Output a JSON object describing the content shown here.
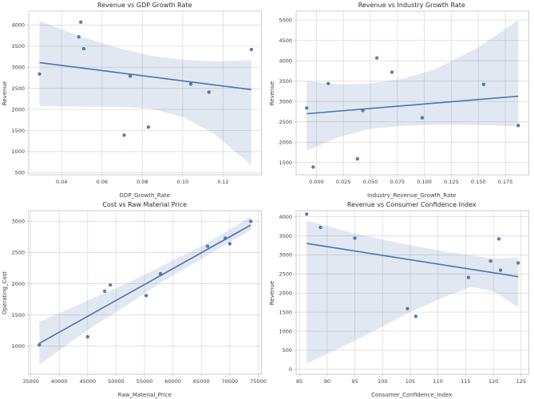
{
  "style": {
    "accent": "#4c72b0",
    "point_edge": "#3d5c90",
    "band_opacity": 0.16,
    "grid": "#dcdcdc",
    "spine": "#cccccc",
    "plot_bg": "#ffffff",
    "figure_bg": "#ffffff",
    "title_color": "#2b2b2b",
    "tick_text": "#3c3c3c"
  },
  "chart_data": [
    {
      "type": "scatter",
      "title": "Revenue vs GDP Growth Rate",
      "xlabel": "GDP_Growth_Rate",
      "ylabel": "Revenue",
      "xlim": [
        0.0237,
        0.139
      ],
      "ylim": [
        450,
        4330
      ],
      "xticks": {
        "values": [
          0.04,
          0.06,
          0.08,
          0.1,
          0.12
        ],
        "labels": [
          "0.04",
          "0.06",
          "0.08",
          "0.10",
          "0.12"
        ]
      },
      "yticks": {
        "values": [
          500,
          1000,
          1500,
          2000,
          2500,
          3000,
          3500,
          4000
        ],
        "labels": [
          "500",
          "1000",
          "1500",
          "2000",
          "2500",
          "3000",
          "3500",
          "4000"
        ]
      },
      "points": [
        [
          0.029,
          2840
        ],
        [
          0.0485,
          3720
        ],
        [
          0.0495,
          4070
        ],
        [
          0.051,
          3440
        ],
        [
          0.071,
          1390
        ],
        [
          0.074,
          2790
        ],
        [
          0.083,
          1580
        ],
        [
          0.104,
          2600
        ],
        [
          0.113,
          2410
        ],
        [
          0.134,
          3420
        ]
      ],
      "regression": [
        [
          0.029,
          3110
        ],
        [
          0.134,
          2470
        ]
      ],
      "band": {
        "x": [
          0.029,
          0.05,
          0.07,
          0.085,
          0.1,
          0.115,
          0.134
        ],
        "upper": [
          4100,
          3720,
          3430,
          3270,
          3180,
          3140,
          3165
        ],
        "lower": [
          2080,
          2065,
          2060,
          2010,
          1820,
          1440,
          680
        ]
      },
      "grid": true,
      "legend": false
    },
    {
      "type": "scatter",
      "title": "Revenue vs Industry Growth Rate",
      "xlabel": "Industry_Revenue_Growth_Rate",
      "ylabel": "Revenue",
      "xlim": [
        -0.0188,
        0.1968
      ],
      "ylim": [
        1200,
        5220
      ],
      "xticks": {
        "values": [
          0.0,
          0.025,
          0.05,
          0.075,
          0.1,
          0.125,
          0.15,
          0.175
        ],
        "labels": [
          "0.000",
          "0.025",
          "0.050",
          "0.075",
          "0.100",
          "0.125",
          "0.150",
          "0.175"
        ]
      },
      "yticks": {
        "values": [
          1500,
          2000,
          2500,
          3000,
          3500,
          4000,
          4500,
          5000
        ],
        "labels": [
          "1500",
          "2000",
          "2500",
          "3000",
          "3500",
          "4000",
          "4500",
          "5000"
        ]
      },
      "points": [
        [
          -0.009,
          2840
        ],
        [
          -0.003,
          1390
        ],
        [
          0.011,
          3440
        ],
        [
          0.038,
          1590
        ],
        [
          0.043,
          2780
        ],
        [
          0.056,
          4070
        ],
        [
          0.07,
          3720
        ],
        [
          0.098,
          2600
        ],
        [
          0.155,
          3420
        ],
        [
          0.187,
          2410
        ]
      ],
      "regression": [
        [
          -0.009,
          2700
        ],
        [
          0.187,
          3130
        ]
      ],
      "band": {
        "x": [
          -0.009,
          0.02,
          0.05,
          0.08,
          0.11,
          0.15,
          0.187
        ],
        "upper": [
          3500,
          3420,
          3440,
          3560,
          3790,
          4330,
          5000
        ],
        "lower": [
          1790,
          2120,
          2330,
          2400,
          2430,
          2420,
          2390
        ]
      },
      "grid": true,
      "legend": false
    },
    {
      "type": "scatter",
      "title": "Cost vs Raw Material Price",
      "xlabel": "Raw_Material_Price",
      "ylabel": "Operating_Cost",
      "xlim": [
        34640,
        75560
      ],
      "ylim": [
        550,
        3170
      ],
      "xticks": {
        "values": [
          35000,
          40000,
          45000,
          50000,
          55000,
          60000,
          65000,
          70000,
          75000
        ],
        "labels": [
          "35000",
          "40000",
          "45000",
          "50000",
          "55000",
          "60000",
          "65000",
          "70000",
          "75000"
        ]
      },
      "yticks": {
        "values": [
          1000,
          1500,
          2000,
          2500,
          3000
        ],
        "labels": [
          "1000",
          "1500",
          "2000",
          "2500",
          "3000"
        ]
      },
      "points": [
        [
          36500,
          1020
        ],
        [
          45000,
          1150
        ],
        [
          48000,
          1880
        ],
        [
          49000,
          1980
        ],
        [
          55300,
          1810
        ],
        [
          57800,
          2160
        ],
        [
          66100,
          2600
        ],
        [
          69200,
          2730
        ],
        [
          70000,
          2640
        ],
        [
          73700,
          3000
        ]
      ],
      "regression": [
        [
          36500,
          1045
        ],
        [
          73700,
          2940
        ]
      ],
      "band": {
        "x": [
          36500,
          45000,
          52000,
          58000,
          66000,
          73700
        ],
        "upper": [
          1390,
          1730,
          2010,
          2280,
          2650,
          3075
        ],
        "lower": [
          700,
          1260,
          1660,
          2030,
          2450,
          2860
        ]
      },
      "grid": true,
      "legend": false
    },
    {
      "type": "scatter",
      "title": "Revenue vs Consumer Confidence Index",
      "xlabel": "Consumer_Confidence_Index",
      "ylabel": "Revenue",
      "xlim": [
        84.4,
        126.4
      ],
      "ylim": [
        -130,
        4160
      ],
      "xticks": {
        "values": [
          85,
          90,
          95,
          100,
          105,
          110,
          115,
          120,
          125
        ],
        "labels": [
          "85",
          "90",
          "95",
          "100",
          "105",
          "110",
          "115",
          "120",
          "125"
        ]
      },
      "yticks": {
        "values": [
          0,
          500,
          1000,
          1500,
          2000,
          2500,
          3000,
          3500,
          4000
        ],
        "labels": [
          "0",
          "500",
          "1000",
          "1500",
          "2000",
          "2500",
          "3000",
          "3500",
          "4000"
        ]
      },
      "points": [
        [
          86.3,
          4070
        ],
        [
          88.8,
          3720
        ],
        [
          95,
          3440
        ],
        [
          104.5,
          1590
        ],
        [
          106,
          1390
        ],
        [
          115.5,
          2410
        ],
        [
          119.5,
          2840
        ],
        [
          121,
          3420
        ],
        [
          121.3,
          2600
        ],
        [
          124.5,
          2790
        ]
      ],
      "regression": [
        [
          86.3,
          3300
        ],
        [
          124.5,
          2430
        ]
      ],
      "band": {
        "x": [
          86.3,
          95,
          105,
          112,
          116,
          120,
          124.5
        ],
        "upper": [
          3900,
          3560,
          3250,
          3070,
          2990,
          2900,
          2930
        ],
        "lower": [
          150,
          750,
          1500,
          1950,
          2160,
          2050,
          1630
        ]
      },
      "grid": true,
      "legend": false
    }
  ]
}
